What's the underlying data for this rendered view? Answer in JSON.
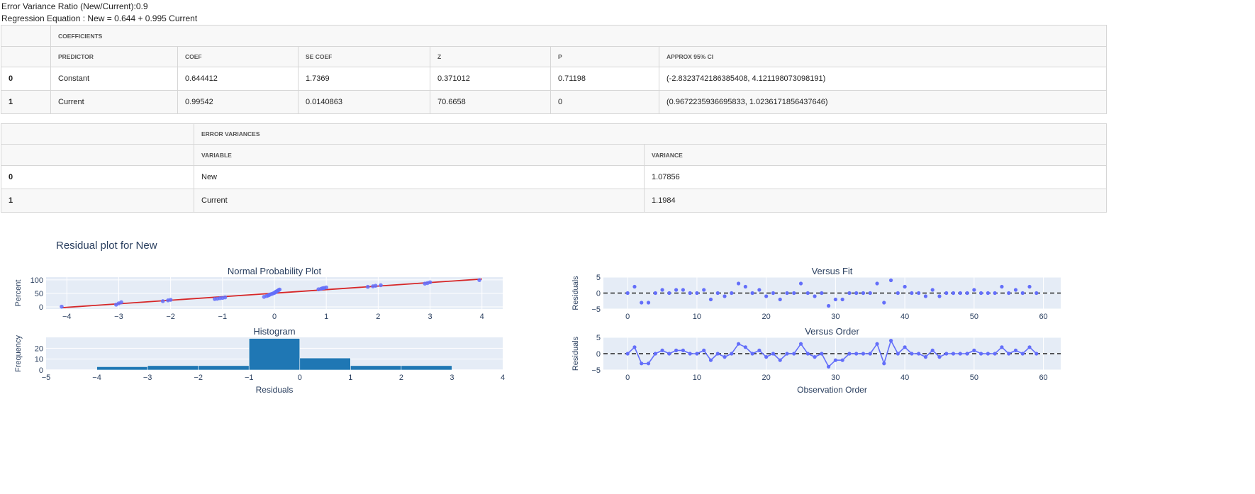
{
  "summary": {
    "ratio_text": "Error Variance Ratio (New/Current):0.9",
    "equation_text": "Regression Equation : New = 0.644 + 0.995 Current"
  },
  "coefficients": {
    "group_header": "COEFFICIENTS",
    "columns": [
      "PREDICTOR",
      "COEF",
      "SE COEF",
      "Z",
      "P",
      "APPROX 95% CI"
    ],
    "rows": [
      {
        "index": "0",
        "predictor": "Constant",
        "coef": "0.644412",
        "se_coef": "1.7369",
        "z": "0.371012",
        "p": "0.71198",
        "ci": "(-2.8323742186385408, 4.121198073098191)"
      },
      {
        "index": "1",
        "predictor": "Current",
        "coef": "0.99542",
        "se_coef": "0.0140863",
        "z": "70.6658",
        "p": "0",
        "ci": "(0.9672235936695833, 1.0236171856437646)"
      }
    ]
  },
  "error_variances": {
    "group_header": "ERROR VARIANCES",
    "columns": [
      "VARIABLE",
      "VARIANCE"
    ],
    "rows": [
      {
        "index": "0",
        "variable": "New",
        "variance": "1.07856"
      },
      {
        "index": "1",
        "variable": "Current",
        "variance": "1.1984"
      }
    ]
  },
  "chart_data": {
    "suptitle": "Residual plot for New",
    "colors": {
      "points": "#636efa",
      "fit_line": "#d62728",
      "bars": "#1f77b4",
      "zero_line": "#222222",
      "plot_bg": "#e5ecf6"
    },
    "normal_probability": {
      "type": "scatter",
      "title": "Normal Probability Plot",
      "ylabel": "Percent",
      "xlim": [
        -4.4,
        4.4
      ],
      "ylim": [
        -8,
        110
      ],
      "xticks": [
        -4,
        -3,
        -2,
        -1,
        0,
        1,
        2,
        3,
        4
      ],
      "yticks": [
        0,
        50,
        100
      ],
      "fit_line": [
        [
          -4.1,
          -3
        ],
        [
          4.0,
          103
        ]
      ],
      "points": [
        [
          -4.1,
          0.8
        ],
        [
          -3.05,
          8
        ],
        [
          -3.0,
          13
        ],
        [
          -2.95,
          17
        ],
        [
          -2.15,
          21
        ],
        [
          -2.05,
          24
        ],
        [
          -2.0,
          26
        ],
        [
          -1.15,
          29
        ],
        [
          -1.1,
          30
        ],
        [
          -1.05,
          32
        ],
        [
          -1.0,
          33
        ],
        [
          -0.95,
          35
        ],
        [
          -0.2,
          37
        ],
        [
          -0.15,
          40
        ],
        [
          -0.12,
          42
        ],
        [
          -0.1,
          44
        ],
        [
          -0.08,
          46
        ],
        [
          -0.05,
          48
        ],
        [
          -0.02,
          50
        ],
        [
          0.0,
          52
        ],
        [
          0.02,
          54
        ],
        [
          0.03,
          56
        ],
        [
          0.05,
          58
        ],
        [
          0.07,
          60
        ],
        [
          0.08,
          62
        ],
        [
          0.1,
          64
        ],
        [
          0.85,
          65
        ],
        [
          0.9,
          67
        ],
        [
          0.93,
          69
        ],
        [
          0.96,
          70
        ],
        [
          1.0,
          72
        ],
        [
          1.8,
          74
        ],
        [
          1.9,
          76
        ],
        [
          1.95,
          78
        ],
        [
          2.05,
          80
        ],
        [
          2.9,
          86
        ],
        [
          2.95,
          88
        ],
        [
          3.0,
          91
        ],
        [
          3.95,
          99
        ]
      ]
    },
    "histogram": {
      "type": "bar",
      "title": "Histogram",
      "ylabel": "Frequency",
      "xlabel": "Residuals",
      "xlim": [
        -5,
        4
      ],
      "ylim": [
        0,
        30
      ],
      "xticks": [
        -5,
        -4,
        -3,
        -2,
        -1,
        0,
        1,
        2,
        3,
        4
      ],
      "yticks": [
        0,
        10,
        20
      ],
      "bins": [
        [
          -5,
          -4,
          0.3
        ],
        [
          -4,
          -3,
          3
        ],
        [
          -3,
          -2,
          4
        ],
        [
          -2,
          -1,
          4
        ],
        [
          -1,
          0,
          29
        ],
        [
          0,
          1,
          11
        ],
        [
          1,
          2,
          4
        ],
        [
          2,
          3,
          4
        ],
        [
          3,
          4,
          0.3
        ]
      ]
    },
    "versus_fit": {
      "type": "scatter",
      "title": "Versus Fit",
      "ylabel": "Residuals",
      "xlim": [
        -3.5,
        62.5
      ],
      "ylim": [
        -5,
        5
      ],
      "xticks": [
        0,
        10,
        20,
        30,
        40,
        50,
        60
      ],
      "yticks": [
        -5,
        0,
        5
      ]
    },
    "versus_order": {
      "type": "line",
      "title": "Versus Order",
      "ylabel": "Residuals",
      "xlabel": "Observation Order",
      "xlim": [
        -3.5,
        62.5
      ],
      "ylim": [
        -5,
        5
      ],
      "xticks": [
        0,
        10,
        20,
        30,
        40,
        50,
        60
      ],
      "yticks": [
        -5,
        0,
        5
      ]
    },
    "residuals": [
      0,
      2,
      -3,
      -3,
      0,
      1,
      0,
      1,
      1,
      0,
      0,
      1,
      -2,
      0,
      -1,
      0,
      3,
      2,
      0,
      1,
      -1,
      0,
      -2,
      0,
      0,
      3,
      0,
      -1,
      0,
      -4,
      -2,
      -2,
      0,
      0,
      0,
      0,
      3,
      -3,
      4,
      0,
      2,
      0,
      0,
      -1,
      1,
      -1,
      0,
      0,
      0,
      0,
      1,
      0,
      0,
      0,
      2,
      0,
      1,
      0,
      2,
      0
    ]
  }
}
